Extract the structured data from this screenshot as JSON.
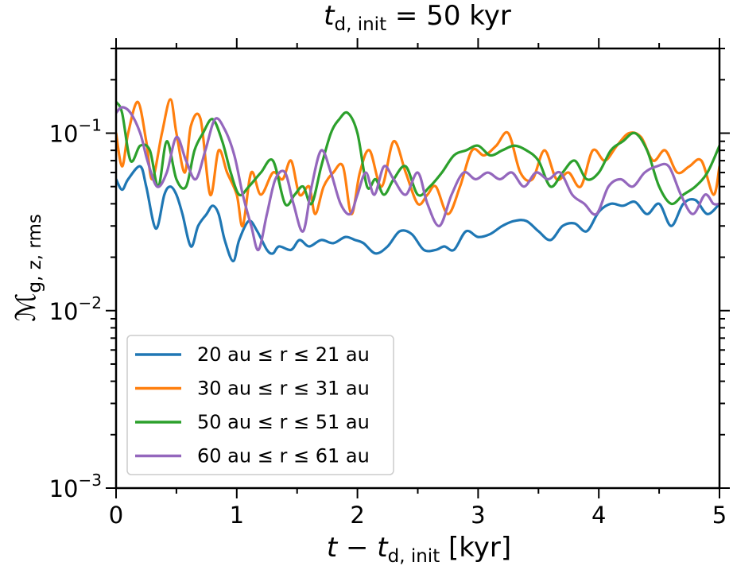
{
  "chart_data": {
    "type": "line",
    "title": {
      "base": "t",
      "sub": "d, init",
      "rest": " = 50 kyr"
    },
    "xlabel": {
      "pre": "t − t",
      "sub": "d, init",
      "post": " [kyr]"
    },
    "ylabel": {
      "base": "ℳ",
      "sub": "g, z, rms"
    },
    "xlim": [
      0,
      5
    ],
    "ylim": [
      0.001,
      0.3
    ],
    "yscale": "log",
    "x_ticks": [
      {
        "value": 0,
        "label": "0"
      },
      {
        "value": 1,
        "label": "1"
      },
      {
        "value": 2,
        "label": "2"
      },
      {
        "value": 3,
        "label": "3"
      },
      {
        "value": 4,
        "label": "4"
      },
      {
        "value": 5,
        "label": "5"
      }
    ],
    "y_ticks": [
      {
        "value": 0.001,
        "base": "10",
        "exp": "−3"
      },
      {
        "value": 0.01,
        "base": "10",
        "exp": "−2"
      },
      {
        "value": 0.1,
        "base": "10",
        "exp": "−1"
      }
    ],
    "legend_position": "lower-left",
    "series": [
      {
        "name": "20 au ≤ r ≤ 21 au",
        "color": "#1f77b4",
        "x": [
          0,
          0.05,
          0.1,
          0.2,
          0.25,
          0.33,
          0.4,
          0.45,
          0.5,
          0.55,
          0.62,
          0.68,
          0.75,
          0.8,
          0.85,
          0.9,
          0.97,
          1.02,
          1.1,
          1.17,
          1.25,
          1.3,
          1.35,
          1.45,
          1.52,
          1.6,
          1.7,
          1.8,
          1.9,
          1.98,
          2.05,
          2.15,
          2.25,
          2.35,
          2.45,
          2.55,
          2.65,
          2.72,
          2.8,
          2.9,
          3.0,
          3.1,
          3.2,
          3.3,
          3.4,
          3.5,
          3.6,
          3.7,
          3.8,
          3.9,
          4.0,
          4.1,
          4.2,
          4.3,
          4.4,
          4.5,
          4.6,
          4.7,
          4.8,
          4.9,
          5.0
        ],
        "y": [
          0.055,
          0.048,
          0.055,
          0.065,
          0.05,
          0.029,
          0.045,
          0.05,
          0.045,
          0.035,
          0.023,
          0.03,
          0.035,
          0.039,
          0.035,
          0.025,
          0.019,
          0.025,
          0.032,
          0.028,
          0.022,
          0.021,
          0.023,
          0.022,
          0.025,
          0.023,
          0.025,
          0.024,
          0.026,
          0.025,
          0.024,
          0.021,
          0.023,
          0.028,
          0.027,
          0.022,
          0.022,
          0.023,
          0.022,
          0.028,
          0.026,
          0.027,
          0.03,
          0.032,
          0.032,
          0.028,
          0.025,
          0.03,
          0.031,
          0.028,
          0.036,
          0.04,
          0.039,
          0.041,
          0.035,
          0.04,
          0.03,
          0.04,
          0.042,
          0.035,
          0.04
        ]
      },
      {
        "name": "30 au ≤ r ≤ 31 au",
        "color": "#ff7f0e",
        "x": [
          0,
          0.05,
          0.1,
          0.18,
          0.25,
          0.3,
          0.38,
          0.45,
          0.5,
          0.57,
          0.62,
          0.7,
          0.78,
          0.85,
          0.92,
          1.0,
          1.05,
          1.12,
          1.2,
          1.3,
          1.38,
          1.45,
          1.52,
          1.6,
          1.65,
          1.72,
          1.8,
          1.88,
          1.95,
          2.02,
          2.1,
          2.2,
          2.3,
          2.4,
          2.5,
          2.58,
          2.65,
          2.75,
          2.85,
          2.95,
          3.05,
          3.15,
          3.25,
          3.35,
          3.45,
          3.55,
          3.65,
          3.75,
          3.85,
          3.95,
          4.05,
          4.15,
          4.25,
          4.35,
          4.45,
          4.55,
          4.65,
          4.75,
          4.85,
          4.95,
          5.0
        ],
        "y": [
          0.1,
          0.065,
          0.1,
          0.15,
          0.09,
          0.055,
          0.1,
          0.155,
          0.1,
          0.06,
          0.11,
          0.12,
          0.045,
          0.08,
          0.06,
          0.045,
          0.03,
          0.06,
          0.045,
          0.06,
          0.055,
          0.07,
          0.045,
          0.05,
          0.035,
          0.05,
          0.06,
          0.065,
          0.035,
          0.06,
          0.08,
          0.05,
          0.09,
          0.06,
          0.04,
          0.045,
          0.05,
          0.035,
          0.05,
          0.08,
          0.075,
          0.085,
          0.1,
          0.06,
          0.055,
          0.08,
          0.055,
          0.06,
          0.05,
          0.08,
          0.07,
          0.085,
          0.1,
          0.095,
          0.07,
          0.08,
          0.06,
          0.065,
          0.07,
          0.045,
          0.065
        ]
      },
      {
        "name": "50 au ≤ r ≤ 51 au",
        "color": "#2ca02c",
        "x": [
          0,
          0.05,
          0.12,
          0.2,
          0.28,
          0.35,
          0.42,
          0.5,
          0.58,
          0.65,
          0.72,
          0.8,
          0.88,
          0.95,
          1.02,
          1.1,
          1.2,
          1.3,
          1.4,
          1.48,
          1.55,
          1.62,
          1.7,
          1.78,
          1.85,
          1.92,
          2.0,
          2.08,
          2.15,
          2.22,
          2.3,
          2.4,
          2.5,
          2.6,
          2.7,
          2.8,
          2.9,
          3.0,
          3.1,
          3.2,
          3.3,
          3.4,
          3.5,
          3.6,
          3.7,
          3.8,
          3.9,
          4.0,
          4.1,
          4.2,
          4.3,
          4.4,
          4.5,
          4.6,
          4.7,
          4.8,
          4.9,
          5.0
        ],
        "y": [
          0.15,
          0.13,
          0.07,
          0.085,
          0.08,
          0.05,
          0.09,
          0.055,
          0.05,
          0.08,
          0.1,
          0.12,
          0.09,
          0.06,
          0.045,
          0.05,
          0.06,
          0.07,
          0.04,
          0.045,
          0.05,
          0.04,
          0.065,
          0.1,
          0.12,
          0.13,
          0.1,
          0.05,
          0.055,
          0.045,
          0.055,
          0.065,
          0.045,
          0.05,
          0.06,
          0.075,
          0.08,
          0.085,
          0.075,
          0.08,
          0.085,
          0.08,
          0.07,
          0.05,
          0.06,
          0.07,
          0.055,
          0.06,
          0.08,
          0.09,
          0.1,
          0.08,
          0.05,
          0.04,
          0.045,
          0.05,
          0.06,
          0.085
        ]
      },
      {
        "name": "60 au ≤ r ≤ 61 au",
        "color": "#9467bd",
        "x": [
          0,
          0.05,
          0.12,
          0.2,
          0.26,
          0.34,
          0.42,
          0.5,
          0.58,
          0.66,
          0.74,
          0.82,
          0.9,
          0.98,
          1.05,
          1.12,
          1.18,
          1.25,
          1.32,
          1.4,
          1.47,
          1.55,
          1.62,
          1.7,
          1.78,
          1.86,
          1.94,
          2.0,
          2.07,
          2.14,
          2.22,
          2.3,
          2.4,
          2.5,
          2.58,
          2.68,
          2.78,
          2.88,
          2.98,
          3.08,
          3.18,
          3.28,
          3.38,
          3.48,
          3.58,
          3.68,
          3.78,
          3.88,
          3.98,
          4.08,
          4.18,
          4.28,
          4.38,
          4.48,
          4.58,
          4.68,
          4.78,
          4.88,
          4.95,
          5.0
        ],
        "y": [
          0.13,
          0.14,
          0.13,
          0.1,
          0.07,
          0.05,
          0.06,
          0.095,
          0.07,
          0.055,
          0.08,
          0.12,
          0.105,
          0.075,
          0.045,
          0.03,
          0.022,
          0.035,
          0.055,
          0.06,
          0.04,
          0.028,
          0.05,
          0.08,
          0.06,
          0.04,
          0.035,
          0.045,
          0.06,
          0.045,
          0.065,
          0.055,
          0.045,
          0.06,
          0.04,
          0.03,
          0.045,
          0.06,
          0.055,
          0.06,
          0.055,
          0.06,
          0.05,
          0.06,
          0.055,
          0.06,
          0.045,
          0.04,
          0.035,
          0.05,
          0.055,
          0.05,
          0.06,
          0.065,
          0.065,
          0.045,
          0.035,
          0.045,
          0.04,
          0.04
        ]
      }
    ]
  }
}
